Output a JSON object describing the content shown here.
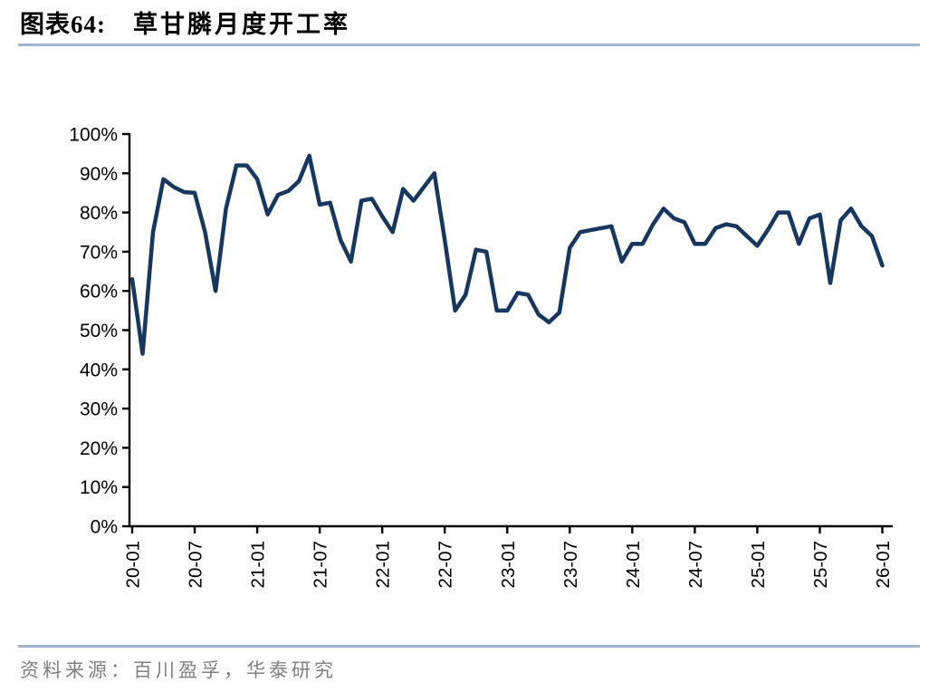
{
  "header": {
    "chart_label": "图表64:",
    "title": "草甘膦月度开工率"
  },
  "footer": {
    "source": "资料来源：百川盈孚，华泰研究"
  },
  "colors": {
    "line": "#17375E",
    "accent_rule": "#9DB3CF",
    "axis": "#000000",
    "footer_text": "#808080"
  },
  "chart_data": {
    "type": "line",
    "title": "草甘膦月度开工率",
    "x_start": "20-01",
    "x_interval": "monthly",
    "x_tick_labels": [
      "20-01",
      "20-07",
      "21-01",
      "21-07",
      "22-01",
      "22-07",
      "23-01",
      "23-07",
      "24-01",
      "24-07",
      "25-01",
      "25-07",
      "26-01"
    ],
    "y_tick_labels": [
      "0%",
      "10%",
      "20%",
      "30%",
      "40%",
      "50%",
      "60%",
      "70%",
      "80%",
      "90%",
      "100%"
    ],
    "ylim": [
      0,
      100
    ],
    "grid": false,
    "legend": false,
    "series_name": "草甘膦月度开工率",
    "values": [
      63,
      44,
      75,
      88.5,
      86.5,
      85.2,
      85,
      75,
      60,
      81,
      92,
      92,
      88.5,
      79.5,
      84.5,
      85.5,
      88,
      94.5,
      82,
      82.5,
      73,
      67.5,
      83,
      83.5,
      79,
      75,
      86,
      83,
      86.5,
      90,
      73,
      55,
      59,
      70.5,
      70,
      55,
      55,
      59.5,
      59,
      54,
      52,
      54.5,
      71,
      75,
      75.5,
      76,
      76.5,
      67.5,
      72,
      72,
      77,
      81,
      78.5,
      77.5,
      72,
      72,
      76,
      77,
      76.5,
      74,
      71.5,
      75.5,
      80,
      80,
      72,
      78.5,
      79.5,
      62,
      78,
      81,
      76.5,
      74,
      66.5
    ]
  }
}
